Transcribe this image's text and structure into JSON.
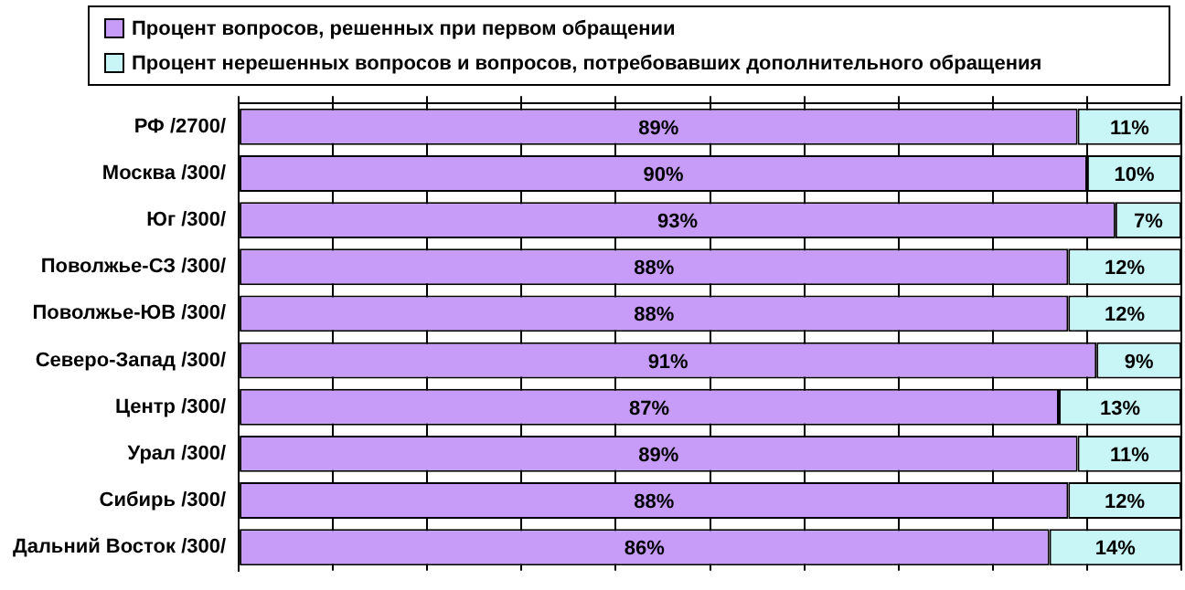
{
  "chart_data": {
    "type": "bar",
    "orientation": "horizontal",
    "stacked": true,
    "categories": [
      "РФ /2700/",
      "Москва /300/",
      "Юг /300/",
      "Поволжье-СЗ /300/",
      "Поволжье-ЮВ /300/",
      "Северо-Запад /300/",
      "Центр /300/",
      "Урал /300/",
      "Сибирь /300/",
      "Дальний Восток /300/"
    ],
    "series": [
      {
        "name": "Процент вопросов, решенных при первом обращении",
        "color": "#c69cf8",
        "values": [
          89,
          90,
          93,
          88,
          88,
          91,
          87,
          89,
          88,
          86
        ],
        "value_labels": [
          "89%",
          "90%",
          "93%",
          "88%",
          "88%",
          "91%",
          "87%",
          "89%",
          "88%",
          "86%"
        ]
      },
      {
        "name": "Процент нерешенных вопросов и вопросов, потребовавших дополнительного обращения",
        "color": "#c8f6f6",
        "values": [
          11,
          10,
          7,
          12,
          12,
          9,
          13,
          11,
          12,
          14
        ],
        "value_labels": [
          "11%",
          "10%",
          "7%",
          "12%",
          "12%",
          "9%",
          "13%",
          "11%",
          "12%",
          "14%"
        ]
      }
    ],
    "xlim": [
      0,
      100
    ],
    "xticks": [
      {
        "value": 0,
        "label": null
      },
      {
        "value": 10,
        "label": null
      },
      {
        "value": 20,
        "label": null
      },
      {
        "value": 30,
        "label": null
      },
      {
        "value": 40,
        "label": null
      },
      {
        "value": 50,
        "label": null
      },
      {
        "value": 60,
        "label": null
      },
      {
        "value": 70,
        "label": null
      },
      {
        "value": 80,
        "label": null
      },
      {
        "value": 90,
        "label": null
      },
      {
        "value": 100,
        "label": null
      }
    ],
    "tick_labels": "y",
    "grid": "x",
    "legend": "top"
  }
}
